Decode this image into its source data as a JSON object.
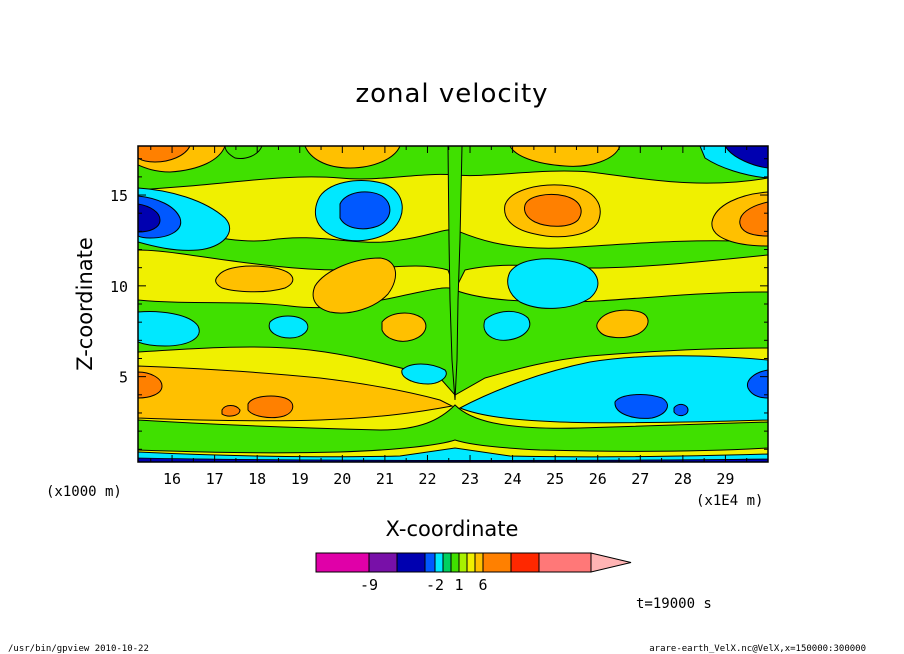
{
  "chart_data": {
    "type": "heatmap",
    "title": "zonal velocity",
    "xlabel": "X-coordinate",
    "ylabel": "Z-coordinate",
    "x_unit": "(x1E4 m)",
    "y_unit": "(x1000 m)",
    "xlim": [
      15.2,
      30.0
    ],
    "ylim": [
      0.3,
      17.7
    ],
    "xticks": [
      "16",
      "17",
      "18",
      "19",
      "20",
      "21",
      "22",
      "23",
      "24",
      "25",
      "26",
      "27",
      "28",
      "29"
    ],
    "yticks": [
      "5",
      "10",
      "15"
    ],
    "colorbar": {
      "levels": [
        -15,
        -9,
        -6,
        -3,
        -2,
        -1,
        0,
        1,
        2,
        3,
        6,
        9,
        15
      ],
      "labels": [
        "-9",
        "-2",
        "1",
        "6"
      ],
      "colors": [
        "#e000a8",
        "#7810a8",
        "#0000b0",
        "#0058ff",
        "#00e8ff",
        "#00d060",
        "#40e000",
        "#a8f000",
        "#f0f000",
        "#ffc000",
        "#ff8000",
        "#ff2800",
        "#ff7878",
        "#ffb4b4"
      ]
    },
    "time_label": "t=19000 s"
  },
  "footer": {
    "left": "/usr/bin/gpview   2010-10-22",
    "right": "arare-earth_VelX.nc@VelX,x=150000:300000"
  }
}
